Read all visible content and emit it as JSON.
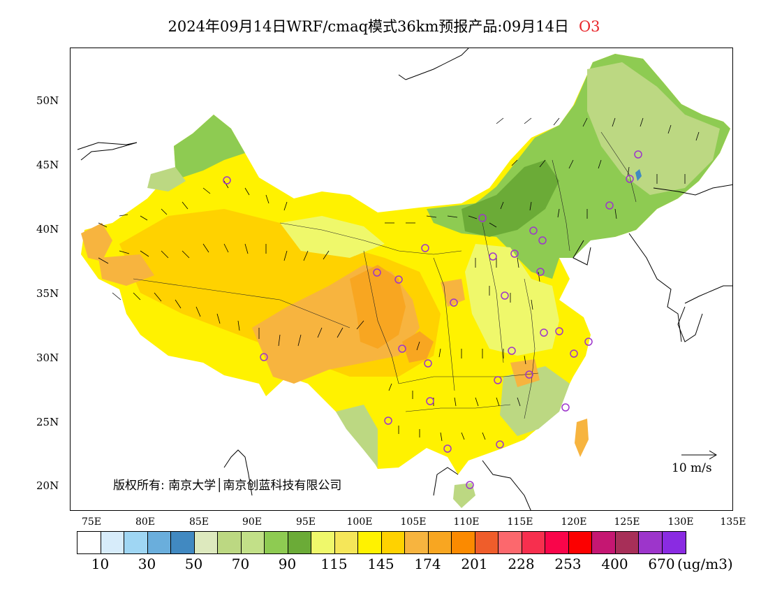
{
  "title": {
    "main": "2024年09月14日WRF/cmaq模式36km预报产品:09月14日",
    "pollutant": "O3",
    "pollutant_color": "#e8262b"
  },
  "axes": {
    "lat_labels": [
      "50N",
      "45N",
      "40N",
      "35N",
      "30N",
      "25N",
      "20N"
    ],
    "lon_labels": [
      "75E",
      "80E",
      "85E",
      "90E",
      "95E",
      "100E",
      "105E",
      "110E",
      "115E",
      "120E",
      "125E",
      "130E",
      "135E"
    ]
  },
  "copyright": "版权所有: 南京大学│南京创蓝科技有限公司",
  "vector_reference": "10 m/s",
  "legend": {
    "colors": [
      "#ffffff",
      "#d7ecfa",
      "#9fd6f3",
      "#6aaedc",
      "#4189c1",
      "#dde9be",
      "#bcd882",
      "#c2e088",
      "#8ecb52",
      "#6bab37",
      "#eff86b",
      "#f5e659",
      "#fff200",
      "#ffd200",
      "#f7b43f",
      "#f8a621",
      "#fb8a00",
      "#ef5d2b",
      "#fc686d",
      "#f72f4e",
      "#f9054a",
      "#fc0000",
      "#c51772",
      "#a72f58",
      "#9d35cb",
      "#8a2be2"
    ],
    "labels": [
      "10",
      "30",
      "50",
      "70",
      "90",
      "115",
      "145",
      "174",
      "201",
      "228",
      "253",
      "400",
      "670"
    ],
    "unit": "(ug/m3)"
  },
  "map": {
    "fill_colors": {
      "green_dark": "#6bab37",
      "green_mid": "#8ecb52",
      "green_light": "#bcd882",
      "yellow_light": "#eff86b",
      "yellow": "#fff200",
      "yellow_gold": "#ffd200",
      "orange_light": "#f7b43f",
      "orange": "#f8a621",
      "orange_dark": "#fb8a00",
      "blue": "#4189c1"
    },
    "station_color": "#9d35cb",
    "station_count": 31
  }
}
